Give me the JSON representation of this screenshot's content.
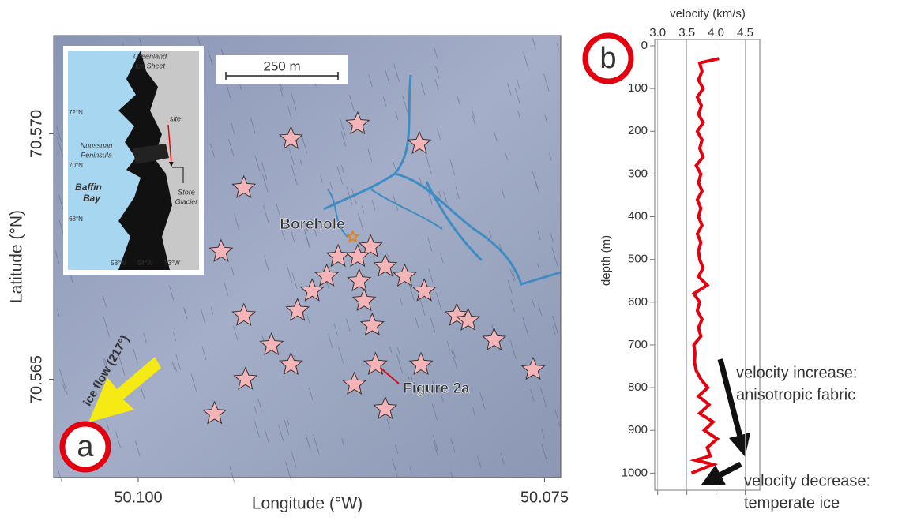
{
  "chart_data": [
    {
      "type": "scatter",
      "panel_label": "a",
      "xlabel": "Longitude (°W)",
      "ylabel": "Latitude (°N)",
      "xlim": [
        50.1052,
        50.074
      ],
      "ylim": [
        70.563,
        70.572
      ],
      "xticks": [
        {
          "value": 50.1,
          "label": "50.100"
        },
        {
          "value": 50.075,
          "label": "50.075"
        }
      ],
      "yticks": [
        {
          "value": 70.57,
          "label": "70.570"
        },
        {
          "value": 70.565,
          "label": "70.565"
        }
      ],
      "x": [
        50.0906,
        50.0865,
        50.0827,
        50.0935,
        50.0949,
        50.0857,
        50.0877,
        50.0865,
        50.0848,
        50.0884,
        50.0864,
        50.0836,
        50.0824,
        50.0893,
        50.0861,
        50.0902,
        50.0935,
        50.0856,
        50.0804,
        50.0797,
        50.0781,
        50.0918,
        50.0906,
        50.0854,
        50.0826,
        50.0757,
        50.0934,
        50.0867,
        50.0848,
        50.0953
      ],
      "y": [
        70.5699,
        70.5702,
        70.5698,
        70.5689,
        70.5676,
        70.5677,
        70.5675,
        70.5675,
        70.5673,
        70.5671,
        70.567,
        70.5671,
        70.5668,
        70.5668,
        70.5666,
        70.5664,
        70.5663,
        70.5661,
        70.5663,
        70.5662,
        70.5658,
        70.5657,
        70.5653,
        70.5653,
        70.5653,
        70.5652,
        70.565,
        70.5649,
        70.5644,
        70.5643
      ],
      "color": "#f5b5b8",
      "borehole": {
        "label": "Borehole",
        "x": 50.0868,
        "y": 70.5679,
        "color": "#e8821e"
      },
      "scale_bar": "250 m",
      "figure_ref": "Figure 2a",
      "ice_flow": "ice flow (217°)",
      "inset": [
        "Greenland",
        "Ice Sheet",
        "72°N",
        "site",
        "Nuussuaq",
        "Peninsula",
        "70°N",
        "Baffin",
        "Bay",
        "Store",
        "Glacier",
        "68°N",
        "58°W",
        "54°W",
        "53°W"
      ]
    },
    {
      "type": "line",
      "panel_label": "b",
      "xlabel": "velocity (km/s)",
      "ylabel": "depth (m)",
      "xlim": [
        2.95,
        4.75
      ],
      "ylim": [
        0,
        1040
      ],
      "xticks": [
        {
          "value": 3.0,
          "label": "3.0"
        },
        {
          "value": 3.5,
          "label": "3.5"
        },
        {
          "value": 4.0,
          "label": "4.0"
        },
        {
          "value": 4.5,
          "label": "4.5"
        }
      ],
      "yticks": [
        0,
        100,
        200,
        300,
        400,
        500,
        600,
        700,
        800,
        900,
        1000
      ],
      "color": "#e3000f",
      "depth": [
        30,
        40,
        60,
        80,
        100,
        120,
        140,
        160,
        180,
        200,
        220,
        240,
        260,
        280,
        300,
        320,
        340,
        360,
        380,
        400,
        420,
        440,
        460,
        480,
        500,
        520,
        540,
        560,
        580,
        600,
        620,
        640,
        660,
        680,
        700,
        720,
        740,
        760,
        780,
        800,
        820,
        840,
        860,
        880,
        900,
        920,
        940,
        960,
        970,
        980,
        1000
      ],
      "velocity": [
        4.05,
        3.72,
        3.76,
        3.7,
        3.78,
        3.68,
        3.75,
        3.7,
        3.78,
        3.68,
        3.76,
        3.72,
        3.78,
        3.66,
        3.74,
        3.7,
        3.76,
        3.68,
        3.74,
        3.7,
        3.76,
        3.68,
        3.74,
        3.7,
        3.72,
        3.78,
        3.7,
        3.85,
        3.62,
        3.72,
        3.68,
        3.76,
        3.7,
        3.74,
        3.62,
        3.64,
        3.63,
        3.66,
        3.74,
        3.86,
        3.7,
        3.88,
        3.72,
        3.95,
        3.8,
        4.02,
        3.85,
        3.9,
        3.65,
        3.95,
        3.58
      ],
      "annotations": [
        [
          "velocity increase:",
          "anisotropic fabric"
        ],
        [
          "velocity decrease:",
          "temperate ice"
        ]
      ]
    }
  ]
}
